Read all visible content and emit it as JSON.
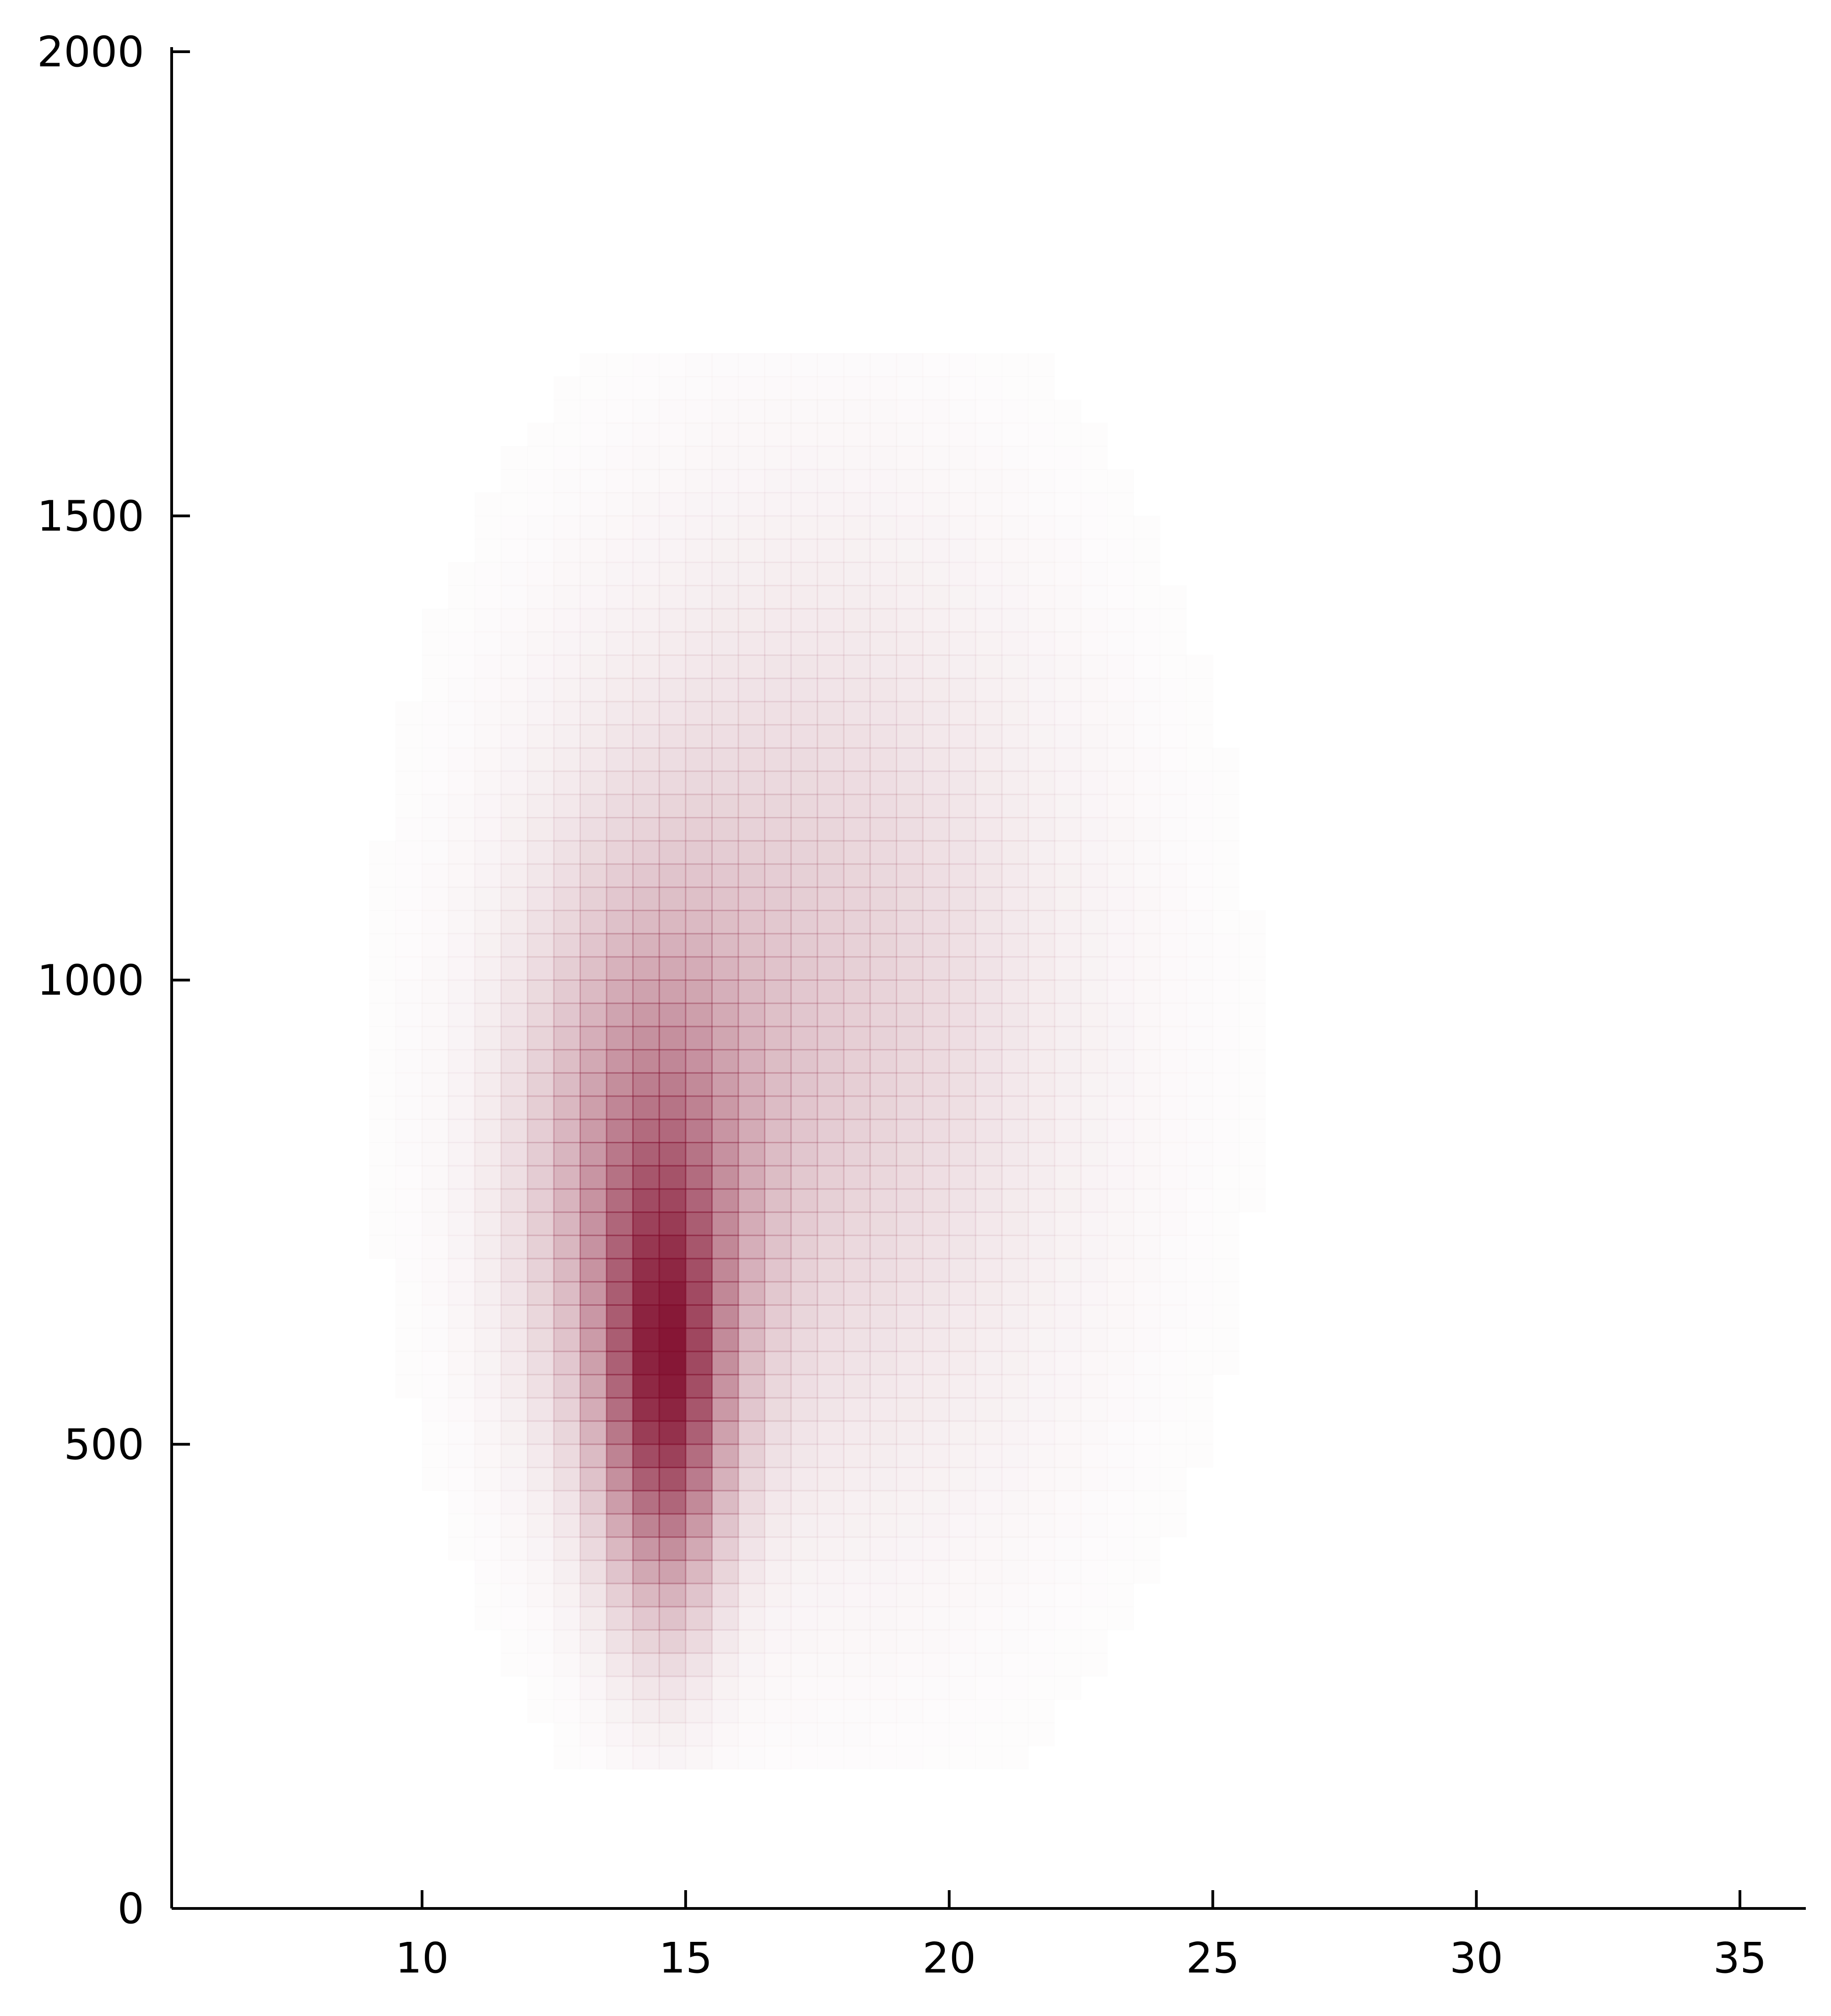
{
  "chart_data": {
    "type": "heatmap",
    "title": "",
    "xlabel": "",
    "ylabel": "",
    "xlim": [
      5.25,
      36.25
    ],
    "ylim": [
      0,
      2000
    ],
    "x_ticks": [
      10,
      15,
      20,
      25,
      30,
      35
    ],
    "y_ticks": [
      0,
      500,
      1000,
      1500,
      2000
    ],
    "x_tick_labels": [
      "10",
      "15",
      "20",
      "25",
      "30",
      "35"
    ],
    "y_tick_labels": [
      "0",
      "500",
      "1000",
      "1500",
      "2000"
    ],
    "grid": false,
    "legend": "none",
    "color": "#7f0a2a",
    "bin_width_x": 0.5,
    "bin_width_y": 25,
    "bins_x_range": [
      8.5,
      26.0
    ],
    "bins_y_range": [
      150,
      1675
    ],
    "density": {
      "description_of_shape": "two-component density: sharp peak near x=14.5-15, y=550; broad tail extending to x~25, y~1650",
      "components": [
        {
          "mean_x": 14.6,
          "mean_y": 560,
          "sd_x": 0.75,
          "sd_y": 150,
          "weight": 1.0
        },
        {
          "mean_x": 14.3,
          "mean_y": 780,
          "sd_x": 1.4,
          "sd_y": 200,
          "weight": 0.55
        },
        {
          "mean_x": 16.8,
          "mean_y": 960,
          "sd_x": 3.0,
          "sd_y": 300,
          "weight": 0.2
        },
        {
          "mean_x": 18.5,
          "mean_y": 900,
          "sd_x": 3.5,
          "sd_y": 380,
          "weight": 0.06
        }
      ]
    }
  }
}
